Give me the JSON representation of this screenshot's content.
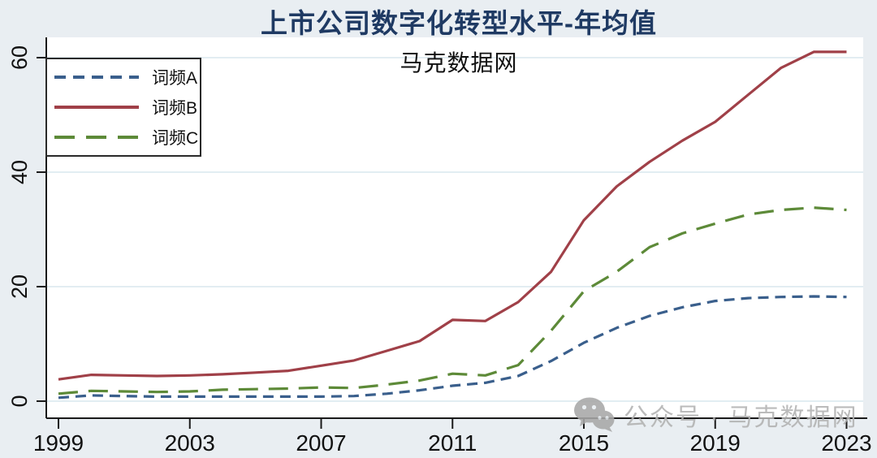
{
  "chart_data": {
    "type": "line",
    "title": "上市公司数字化转型水平-年均值",
    "subtitle": "马克数据网",
    "x": [
      1999,
      2000,
      2001,
      2002,
      2003,
      2004,
      2005,
      2006,
      2007,
      2008,
      2009,
      2010,
      2011,
      2012,
      2013,
      2014,
      2015,
      2016,
      2017,
      2018,
      2019,
      2020,
      2021,
      2022,
      2023
    ],
    "series": [
      {
        "name": "词频A",
        "color": "#3a5f8c",
        "style": "dashed-short",
        "values": [
          0.6,
          1.0,
          0.9,
          0.8,
          0.8,
          0.8,
          0.8,
          0.8,
          0.8,
          0.9,
          1.3,
          1.9,
          2.7,
          3.2,
          4.4,
          7.0,
          10.2,
          12.8,
          14.9,
          16.4,
          17.5,
          18.0,
          18.2,
          18.3,
          18.2
        ]
      },
      {
        "name": "词频B",
        "color": "#a04048",
        "style": "solid",
        "values": [
          3.8,
          4.6,
          4.5,
          4.4,
          4.5,
          4.7,
          5.0,
          5.3,
          6.2,
          7.1,
          8.8,
          10.5,
          14.2,
          14.0,
          17.3,
          22.6,
          31.6,
          37.5,
          41.8,
          45.5,
          48.8,
          53.5,
          58.2,
          61.0,
          61.0
        ]
      },
      {
        "name": "词频C",
        "color": "#5d8a38",
        "style": "dashed-long",
        "values": [
          1.3,
          1.8,
          1.7,
          1.6,
          1.7,
          2.0,
          2.1,
          2.2,
          2.4,
          2.3,
          2.9,
          3.6,
          4.8,
          4.5,
          6.3,
          12.3,
          19.2,
          22.6,
          26.9,
          29.3,
          31.0,
          32.6,
          33.4,
          33.8,
          33.4
        ]
      }
    ],
    "xlabel": "",
    "ylabel": "",
    "xticks": [
      1999,
      2003,
      2007,
      2011,
      2015,
      2019,
      2023
    ],
    "yticks": [
      0,
      20,
      40,
      60
    ],
    "xlim": [
      1999,
      2023
    ],
    "ylim": [
      0,
      62
    ],
    "grid": true,
    "legend_position": "top-left-inside"
  },
  "watermark": {
    "icon": "wechat-icon",
    "text": "公众号 · 马克数据网"
  },
  "colors": {
    "background": "#e9eef2",
    "plot_background": "#ffffff",
    "gridline": "#e2edf2",
    "axis": "#1a1a1a",
    "title": "#1f3a63",
    "subtitle": "#111111",
    "watermark": "#b2b2b2"
  }
}
